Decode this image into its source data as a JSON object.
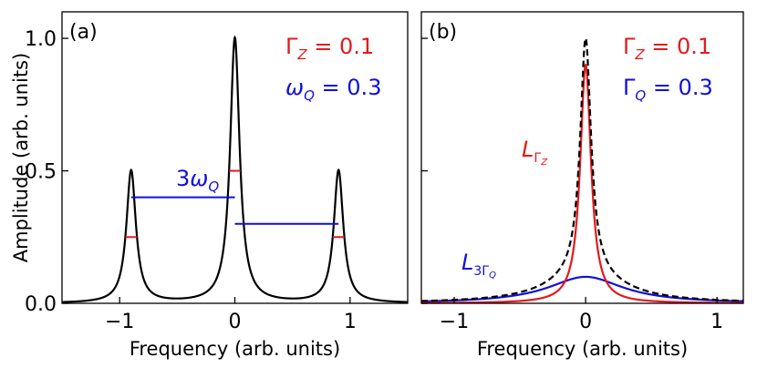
{
  "colors": {
    "red": "#e31a1c",
    "blue": "#1010d8",
    "black": "#000000"
  },
  "chart_data": [
    {
      "panel": "(a)",
      "type": "line",
      "xlabel": "Frequency (arb. units)",
      "ylabel": "Amplitude (arb. units)",
      "xlim": [
        -1.5,
        1.5
      ],
      "ylim": [
        0,
        1.1
      ],
      "xticks": [
        -1,
        0,
        1
      ],
      "xtick_labels": [
        "−1",
        "0",
        "1"
      ],
      "yticks": [
        0,
        0.5,
        1.0
      ],
      "ytick_labels": [
        "0.0",
        "0.5",
        "1.0"
      ],
      "curve": {
        "name": "spectrum",
        "model": "sum of Lorentzians",
        "gamma": 0.05,
        "peaks": [
          {
            "center": -0.9,
            "height": 0.5
          },
          {
            "center": 0.0,
            "height": 1.0
          },
          {
            "center": 0.9,
            "height": 0.5
          }
        ]
      },
      "halfwidth_markers": [
        {
          "x0": -0.95,
          "x1": -0.85,
          "y": 0.25
        },
        {
          "x0": -0.05,
          "x1": 0.05,
          "y": 0.5
        },
        {
          "x0": 0.85,
          "x1": 0.95,
          "y": 0.25
        }
      ],
      "spacing_lines": [
        {
          "x0": -0.9,
          "x1": 0.0,
          "y": 0.4,
          "label": "3ω_Q"
        },
        {
          "x0": 0.0,
          "x1": 0.9,
          "y": 0.3
        }
      ],
      "spacing_label": {
        "main": "3ω",
        "sub": "Q"
      },
      "legend": [
        {
          "symbol": "Γ",
          "sub": "Z",
          "value": " = 0.1",
          "color": "red"
        },
        {
          "symbol": "ω",
          "sub": "Q",
          "value": " = 0.3",
          "color": "blue"
        }
      ]
    },
    {
      "panel": "(b)",
      "type": "line",
      "xlabel": "Frequency (arb. units)",
      "xlim": [
        -1.25,
        1.2
      ],
      "ylim": [
        0,
        1.1
      ],
      "xticks": [
        -1,
        0,
        1
      ],
      "xtick_labels": [
        "−1",
        "0",
        "1"
      ],
      "series": [
        {
          "name": "L_ΓZ",
          "style": "solid",
          "color": "red",
          "gamma": 0.05,
          "height": 0.9
        },
        {
          "name": "L_3ΓQ",
          "style": "solid",
          "color": "blue",
          "gamma": 0.35,
          "height": 0.1
        },
        {
          "name": "sum",
          "style": "dashed",
          "color": "black",
          "components": [
            "L_ΓZ",
            "L_3ΓQ"
          ]
        }
      ],
      "curve_labels": [
        {
          "main": "L",
          "sub": "Γ",
          "subsub": "Z",
          "color": "red"
        },
        {
          "main": "L",
          "sub": "3Γ",
          "subsub": "Q",
          "color": "blue"
        }
      ],
      "legend": [
        {
          "symbol": "Γ",
          "sub": "Z",
          "value": " = 0.1",
          "color": "red"
        },
        {
          "symbol": "Γ",
          "sub": "Q",
          "value": " = 0.3",
          "color": "blue"
        }
      ]
    }
  ]
}
